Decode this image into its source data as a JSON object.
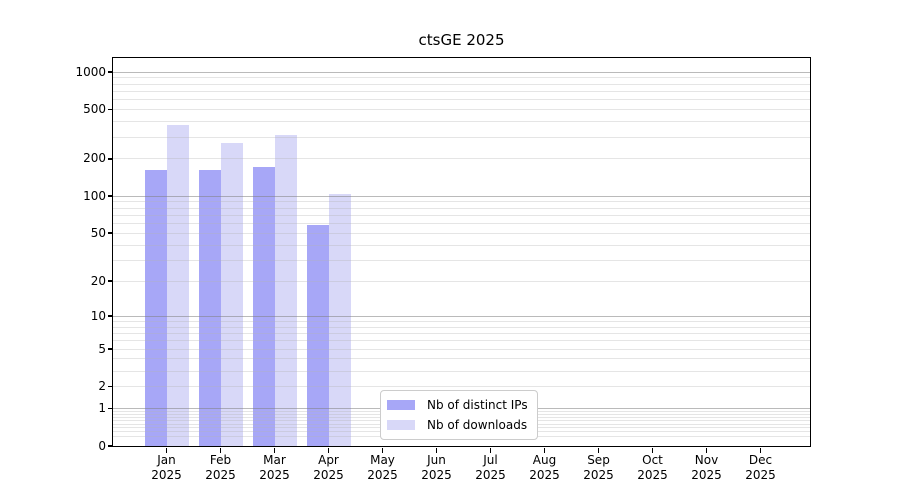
{
  "chart_data": {
    "type": "bar",
    "title": "ctsGE 2025",
    "categories": [
      "Jan 2025",
      "Feb 2025",
      "Mar 2025",
      "Apr 2025",
      "May 2025",
      "Jun 2025",
      "Jul 2025",
      "Aug 2025",
      "Sep 2025",
      "Oct 2025",
      "Nov 2025",
      "Dec 2025"
    ],
    "series": [
      {
        "name": "Nb of distinct IPs",
        "color": "#a7a7f7",
        "values": [
          163,
          163,
          173,
          58,
          0,
          0,
          0,
          0,
          0,
          0,
          0,
          0
        ]
      },
      {
        "name": "Nb of downloads",
        "color": "#d8d8f8",
        "values": [
          375,
          267,
          313,
          105,
          0,
          0,
          0,
          0,
          0,
          0,
          0,
          0
        ]
      }
    ],
    "xlabel": "",
    "ylabel": "",
    "yscale": "log10(1+value)",
    "ylim": [
      0,
      1296
    ],
    "yticks": [
      0,
      1,
      2,
      5,
      10,
      20,
      50,
      100,
      200,
      500,
      1000
    ],
    "major_grid_values": [
      1,
      10,
      100,
      1000
    ],
    "grid": true,
    "legend_position": "lower center"
  },
  "colors": {
    "grid_major": "rgba(130,130,130,0.55)",
    "grid_minor": "rgba(180,180,180,0.35)",
    "axis": "#000000",
    "background": "#ffffff"
  }
}
